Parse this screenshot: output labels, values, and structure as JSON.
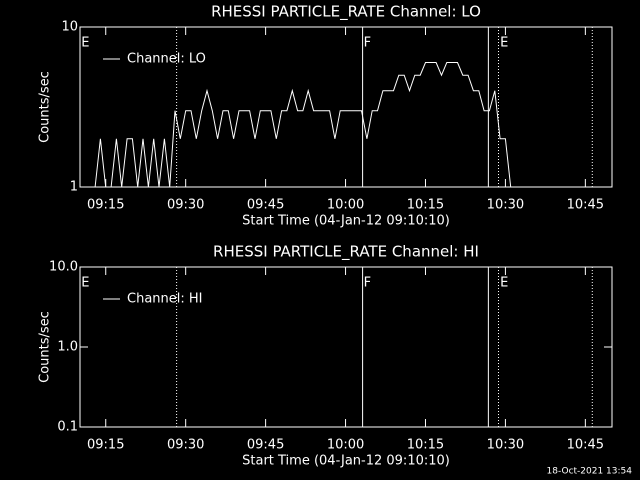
{
  "chart_data": [
    {
      "type": "line",
      "title": "RHESSI PARTICLE_RATE Channel: LO",
      "xlabel": "Start Time (04-Jan-12 09:10:10)",
      "ylabel": "Counts/sec",
      "log_y": true,
      "xlim": [
        10.17,
        110
      ],
      "ylim": [
        1,
        10
      ],
      "yticks": [
        1,
        10
      ],
      "xticks": [
        {
          "value": 15,
          "label": "09:15"
        },
        {
          "value": 30,
          "label": "09:30"
        },
        {
          "value": 45,
          "label": "09:45"
        },
        {
          "value": 60,
          "label": "10:00"
        },
        {
          "value": 75,
          "label": "10:15"
        },
        {
          "value": 90,
          "label": "10:30"
        },
        {
          "value": 105,
          "label": "10:45"
        }
      ],
      "legend": "upper left",
      "series": [
        {
          "name": "Channel: LO",
          "color": "#ffffff",
          "x": [
            13,
            14,
            15,
            16,
            17,
            18,
            19,
            20,
            21,
            22,
            23,
            24,
            25,
            26,
            27,
            28,
            29,
            30,
            31,
            32,
            33,
            34,
            35,
            36,
            37,
            38,
            39,
            40,
            41,
            42,
            43,
            44,
            45,
            46,
            47,
            48,
            49,
            50,
            51,
            52,
            53,
            54,
            55,
            56,
            57,
            58,
            59,
            60,
            61,
            62,
            63,
            64,
            65,
            66,
            67,
            68,
            69,
            70,
            71,
            72,
            73,
            74,
            75,
            76,
            77,
            78,
            79,
            80,
            81,
            82,
            83,
            84,
            85,
            86,
            87,
            88,
            89,
            90,
            91,
            92
          ],
          "values": [
            1,
            2,
            1,
            1,
            2,
            1,
            2,
            2,
            1,
            2,
            1,
            2,
            1,
            2,
            1,
            3,
            2,
            3,
            3,
            2,
            3,
            4,
            3,
            2,
            3,
            3,
            2,
            3,
            3,
            3,
            2,
            3,
            3,
            3,
            2,
            3,
            3,
            4,
            3,
            3,
            4,
            3,
            3,
            3,
            3,
            2,
            3,
            3,
            3,
            3,
            3,
            2,
            3,
            3,
            4,
            4,
            4,
            5,
            5,
            4,
            5,
            5,
            6,
            6,
            6,
            5,
            6,
            6,
            6,
            5,
            5,
            4,
            4,
            3,
            3,
            4,
            2,
            2,
            1,
            1
          ]
        }
      ],
      "vlines": [
        {
          "x": 28.3,
          "style": "dotted"
        },
        {
          "x": 63.2,
          "style": "solid"
        },
        {
          "x": 86.8,
          "style": "solid"
        },
        {
          "x": 88.7,
          "style": "dotted"
        },
        {
          "x": 106.3,
          "style": "dotted"
        }
      ],
      "annotations": [
        {
          "x": 10.4,
          "text": "E"
        },
        {
          "x": 63.4,
          "text": "F"
        },
        {
          "x": 89.0,
          "text": "E"
        }
      ]
    },
    {
      "type": "line",
      "title": "RHESSI PARTICLE_RATE Channel: HI",
      "xlabel": "Start Time (04-Jan-12 09:10:10)",
      "ylabel": "Counts/sec",
      "log_y": true,
      "xlim": [
        10.17,
        110
      ],
      "ylim": [
        0.1,
        10
      ],
      "yticks": [
        0.1,
        {
          "value": 1,
          "label": "1.0"
        },
        {
          "value": 10,
          "label": "10.0"
        }
      ],
      "xticks": [
        {
          "value": 15,
          "label": "09:15"
        },
        {
          "value": 30,
          "label": "09:30"
        },
        {
          "value": 45,
          "label": "09:45"
        },
        {
          "value": 60,
          "label": "10:00"
        },
        {
          "value": 75,
          "label": "10:15"
        },
        {
          "value": 90,
          "label": "10:30"
        },
        {
          "value": 105,
          "label": "10:45"
        }
      ],
      "legend": "upper left",
      "series": [
        {
          "name": "Channel: HI",
          "color": "#ffffff",
          "x": [],
          "values": []
        }
      ],
      "vlines": [
        {
          "x": 28.3,
          "style": "dotted"
        },
        {
          "x": 63.2,
          "style": "solid"
        },
        {
          "x": 86.8,
          "style": "solid"
        },
        {
          "x": 88.7,
          "style": "dotted"
        },
        {
          "x": 106.3,
          "style": "dotted"
        }
      ],
      "annotations": [
        {
          "x": 10.4,
          "text": "E"
        },
        {
          "x": 63.4,
          "text": "F"
        },
        {
          "x": 89.0,
          "text": "E"
        }
      ]
    }
  ],
  "footer": "18-Oct-2021 13:54"
}
